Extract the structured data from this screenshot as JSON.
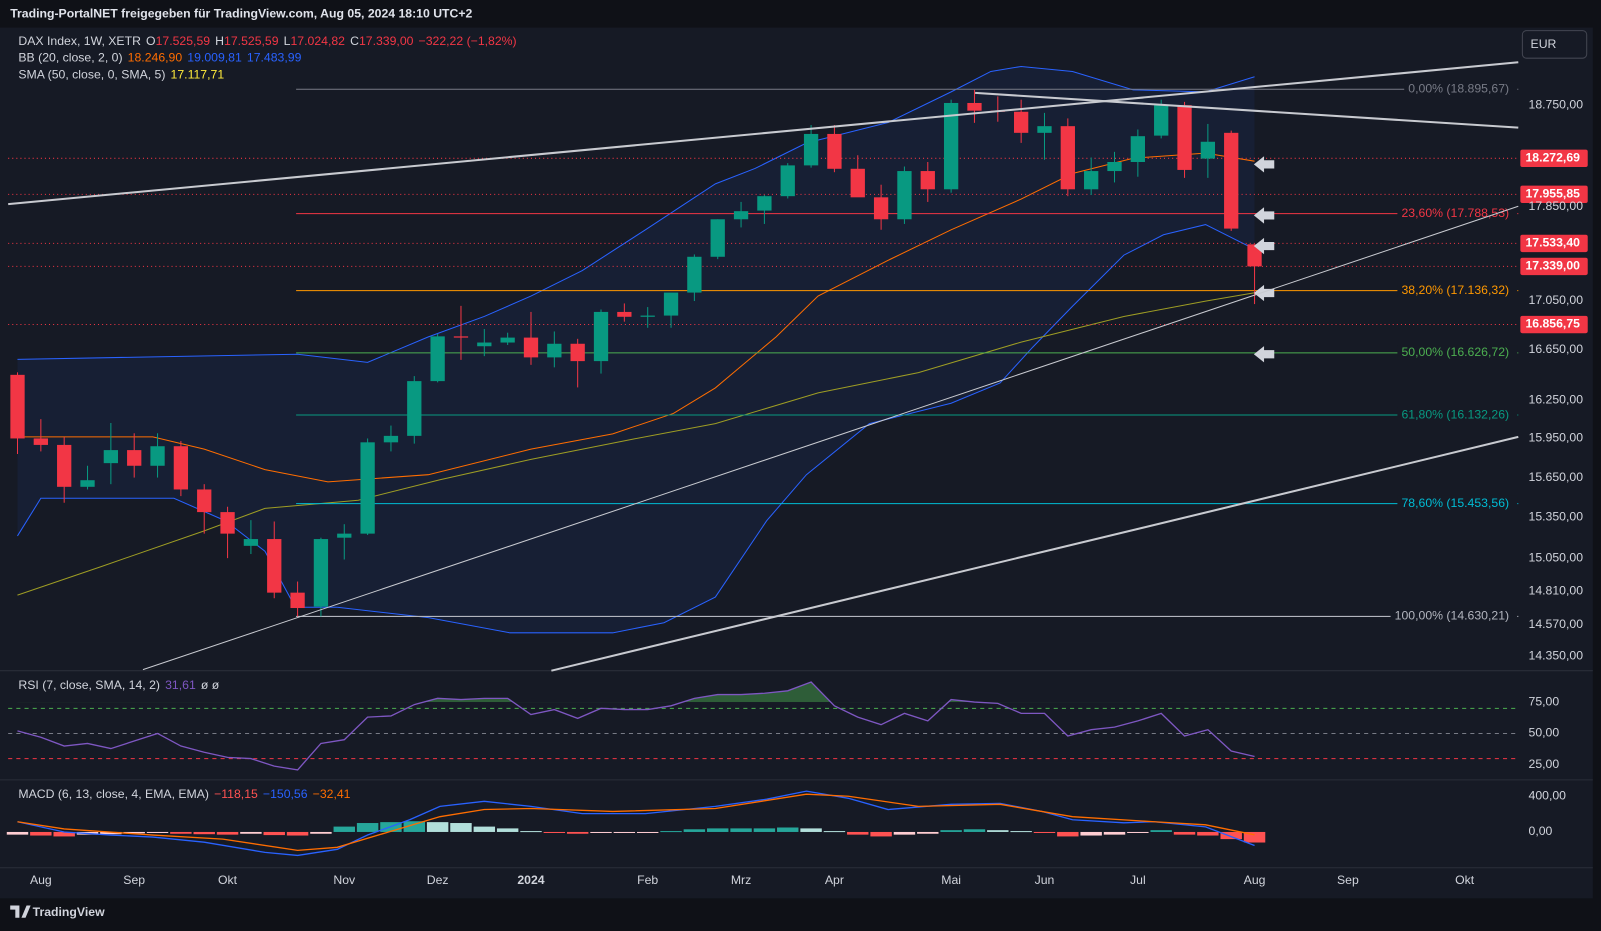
{
  "header": {
    "title": "Trading-PortalNET freigegeben für TradingView.com, Aug 05, 2024 18:10 UTC+2"
  },
  "currency": "EUR",
  "footer": {
    "brand": "TradingView"
  },
  "chart_data": [
    {
      "type": "candlestick",
      "legend": [
        {
          "title": "DAX Index, 1W, XETR",
          "items": [
            {
              "key": "O",
              "value": "17.525,59",
              "color": "#f23645"
            },
            {
              "key": "H",
              "value": "17.525,59",
              "color": "#f23645"
            },
            {
              "key": "L",
              "value": "17.024,82",
              "color": "#f23645"
            },
            {
              "key": "C",
              "value": "17.339,00",
              "color": "#f23645"
            },
            {
              "value": "−322,22 (−1,82%)",
              "color": "#f23645"
            }
          ]
        },
        {
          "title": "BB (20, close, 2, 0)",
          "items": [
            {
              "value": "18.246,90",
              "color": "#ff6d00"
            },
            {
              "value": "19.009,81",
              "color": "#2962ff"
            },
            {
              "value": "17.483,99",
              "color": "#2962ff"
            }
          ]
        },
        {
          "title": "SMA (50, close, 0, SMA, 5)",
          "items": [
            {
              "value": "17.117,71",
              "color": "#ffeb3b"
            }
          ]
        }
      ],
      "xlim": [
        -0.4,
        64.3
      ],
      "xticks": [
        {
          "value": 1,
          "label": "Aug"
        },
        {
          "value": 5,
          "label": "Sep"
        },
        {
          "value": 9,
          "label": "Okt"
        },
        {
          "value": 14,
          "label": "Nov"
        },
        {
          "value": 18,
          "label": "Dez"
        },
        {
          "value": 22,
          "label": "2024"
        },
        {
          "value": 27,
          "label": "Feb"
        },
        {
          "value": 31,
          "label": "Mrz"
        },
        {
          "value": 35,
          "label": "Apr"
        },
        {
          "value": 40,
          "label": "Mai"
        },
        {
          "value": 44,
          "label": "Jun"
        },
        {
          "value": 48,
          "label": "Jul"
        },
        {
          "value": 53,
          "label": "Aug"
        },
        {
          "value": 57,
          "label": "Sep"
        },
        {
          "value": 62,
          "label": "Okt"
        }
      ],
      "ylim": [
        14250,
        19460
      ],
      "log_scale": true,
      "yticks": [
        {
          "value": 18750,
          "label": "18.750,00"
        },
        {
          "value": 17850,
          "label": "17.850,00"
        },
        {
          "value": 17050,
          "label": "17.050,00"
        },
        {
          "value": 16650,
          "label": "16.650,00"
        },
        {
          "value": 16250,
          "label": "16.250,00"
        },
        {
          "value": 15950,
          "label": "15.950,00"
        },
        {
          "value": 15650,
          "label": "15.650,00"
        },
        {
          "value": 15350,
          "label": "15.350,00"
        },
        {
          "value": 15050,
          "label": "15.050,00"
        },
        {
          "value": 14810,
          "label": "14.810,00"
        },
        {
          "value": 14570,
          "label": "14.570,00"
        },
        {
          "value": 14350,
          "label": "14.350,00"
        }
      ],
      "up_color": "#089981",
      "down_color": "#f23645",
      "open": [
        16450,
        15950,
        15900,
        15580,
        15760,
        15860,
        15740,
        15890,
        15560,
        15390,
        15140,
        15190,
        14800,
        14700,
        15200,
        15230,
        15920,
        15970,
        16400,
        16760,
        16680,
        16710,
        16750,
        16590,
        16700,
        16560,
        16960,
        16920,
        16930,
        17120,
        17420,
        17740,
        17815,
        17940,
        18210,
        18490,
        18180,
        17930,
        17740,
        18160,
        18000,
        18770,
        18700,
        18690,
        18500,
        18560,
        18000,
        18160,
        18240,
        18475,
        18750,
        18270,
        18500,
        17525.59
      ],
      "high": [
        16470,
        16100,
        15960,
        15740,
        16070,
        15990,
        15990,
        15930,
        15600,
        15430,
        15330,
        15320,
        14880,
        15200,
        15300,
        15950,
        16050,
        16440,
        16780,
        17010,
        16820,
        16790,
        16960,
        16800,
        16740,
        16980,
        17030,
        17000,
        17110,
        17440,
        17740,
        17890,
        17950,
        18230,
        18570,
        18570,
        18300,
        18040,
        18200,
        18240,
        18800,
        18890,
        18830,
        18800,
        18680,
        18630,
        18280,
        18330,
        18530,
        18800,
        18780,
        18580,
        18520,
        17525.59
      ],
      "low": [
        15830,
        15850,
        15460,
        15560,
        15600,
        15650,
        15650,
        15510,
        15230,
        15050,
        15080,
        14760,
        14630,
        14630,
        15040,
        15220,
        15850,
        15910,
        16390,
        16570,
        16600,
        16690,
        16530,
        16510,
        16350,
        16460,
        16880,
        16830,
        16830,
        17050,
        17400,
        17670,
        17700,
        17920,
        18190,
        18150,
        17940,
        17650,
        17700,
        17890,
        17970,
        18590,
        18600,
        18410,
        18260,
        17940,
        17950,
        18060,
        18110,
        18450,
        18100,
        18100,
        17640,
        17024.82
      ],
      "close": [
        15950,
        15900,
        15580,
        15630,
        15860,
        15740,
        15890,
        15560,
        15390,
        15230,
        15190,
        14800,
        14690,
        15190,
        15230,
        15920,
        15970,
        16400,
        16760,
        16750,
        16710,
        16750,
        16590,
        16700,
        16560,
        16960,
        16920,
        16930,
        17120,
        17420,
        17740,
        17810,
        17940,
        18210,
        18490,
        18180,
        17930,
        17740,
        18160,
        18000,
        18770,
        18700,
        18690,
        18500,
        18560,
        18000,
        18160,
        18240,
        18470,
        18750,
        18170,
        18420,
        17660,
        17339
      ],
      "bollinger": {
        "fill_color": "rgba(41,98,255,0.07)",
        "upper": {
          "color": "#2962ff",
          "x": [
            0,
            12,
            15,
            17.6,
            20,
            22,
            24.2,
            26.9,
            29.9,
            31.6,
            33.8,
            37.3,
            40,
            41.7,
            43,
            45.2,
            47.8,
            50.9,
            53
          ],
          "values": [
            16574,
            16615,
            16550,
            16756,
            16923,
            17091,
            17304,
            17650,
            18048,
            18183,
            18409,
            18593,
            18871,
            19059,
            19106,
            19059,
            18890,
            18871,
            19010
          ]
        },
        "basis": {
          "color": "#ff6d00",
          "x": [
            0,
            5.8,
            8,
            10.6,
            13.3,
            17.6,
            22,
            25.5,
            28.1,
            29.9,
            32.5,
            34.3,
            37.3,
            40,
            43,
            45.2,
            47.8,
            50.9,
            53
          ],
          "values": [
            15962,
            15962,
            15867,
            15711,
            15618,
            15672,
            15867,
            15986,
            16145,
            16346,
            16756,
            17091,
            17390,
            17650,
            17915,
            18138,
            18273,
            18319,
            18247
          ]
        },
        "lower": {
          "color": "#2962ff",
          "x": [
            0,
            1,
            6.7,
            8.9,
            10.6,
            11.9,
            13.7,
            17.6,
            21.1,
            25.5,
            27.7,
            29.9,
            32.1,
            33.8,
            36.5,
            40,
            42.1,
            43.5,
            45.2,
            47.4,
            49.1,
            50.9,
            53
          ],
          "values": [
            15213,
            15494,
            15494,
            15326,
            15100,
            14695,
            14695,
            14622,
            14514,
            14514,
            14586,
            14768,
            15326,
            15672,
            16065,
            16225,
            16386,
            16673,
            17007,
            17434,
            17607,
            17694,
            17484
          ]
        }
      },
      "sma": {
        "color": "#9e9d24",
        "x": [
          0,
          3.6,
          8,
          10.6,
          14.6,
          18.1,
          22,
          26.4,
          29.9,
          34.3,
          38.6,
          43,
          47.4,
          50.9,
          53
        ],
        "values": [
          14782,
          14989,
          15251,
          15418,
          15479,
          15633,
          15789,
          15946,
          16065,
          16306,
          16468,
          16714,
          16923,
          17049,
          17118
        ]
      },
      "fib_levels": [
        {
          "value": 18895.67,
          "label": "0,00% (18.895,67)",
          "color": "#787b86"
        },
        {
          "value": 17788.53,
          "label": "23,60% (17.788,53)",
          "color": "#f23645"
        },
        {
          "value": 17136.32,
          "label": "38,20% (17.136,32)",
          "color": "#ff9800"
        },
        {
          "value": 16626.72,
          "label": "50,00% (16.626,72)",
          "color": "#4caf50"
        },
        {
          "value": 16132.26,
          "label": "61,80% (16.132,26)",
          "color": "#089981"
        },
        {
          "value": 15453.56,
          "label": "78,60% (15.453,56)",
          "color": "#00bcd4"
        },
        {
          "value": 14630.21,
          "label": "100,00% (14.630,21)",
          "color": "#b2b5be"
        }
      ],
      "price_line_color": "#f23645",
      "price_lines": [
        {
          "value": 18272.69,
          "label": "18.272,69"
        },
        {
          "value": 17955.85,
          "label": "17.955,85"
        },
        {
          "value": 17533.4,
          "label": "17.533,40"
        },
        {
          "value": 17339.0,
          "label": "17.339,00"
        },
        {
          "value": 16856.75,
          "label": "16.856,75"
        }
      ]
    },
    {
      "type": "rsi",
      "legend": [
        {
          "title": "RSI (7, close, SMA, 14, 2)",
          "items": [
            {
              "value": "31,61",
              "color": "#7e57c2"
            },
            {
              "value": "ø ø",
              "color": "#d1d4dc"
            }
          ]
        }
      ],
      "ylim": [
        13,
        100
      ],
      "yticks": [
        {
          "value": 75,
          "label": "75,00"
        },
        {
          "value": 50,
          "label": "50,00"
        },
        {
          "value": 25,
          "label": "25,00"
        }
      ],
      "color": "#7e57c2",
      "fill_color": "rgba(76,175,80,0.45)",
      "fill_above": 75,
      "levels": [
        {
          "value": 70,
          "color": "#4caf50"
        },
        {
          "value": 50,
          "color": "#787b86"
        },
        {
          "value": 30,
          "color": "#f23645"
        }
      ],
      "values": [
        52,
        47,
        40,
        42,
        38,
        44,
        50,
        40,
        35,
        31,
        30,
        24,
        21,
        42,
        45,
        63,
        64,
        73,
        78,
        77,
        78,
        78,
        65,
        69,
        62,
        70,
        69,
        69,
        72,
        78,
        81,
        81,
        82,
        84,
        91,
        72,
        63,
        57,
        66,
        60,
        77,
        75,
        74,
        66,
        66,
        48,
        53,
        55,
        60,
        66,
        48,
        53,
        36,
        31.61
      ]
    },
    {
      "type": "macd",
      "legend": [
        {
          "title": "MACD (6, 13, close, 4, EMA, EMA)",
          "items": [
            {
              "value": "−118,15",
              "color": "#ff5252"
            },
            {
              "value": "−150,56",
              "color": "#2962ff"
            },
            {
              "value": "−32,41",
              "color": "#ff6d00"
            }
          ]
        }
      ],
      "ylim": [
        -400,
        571
      ],
      "yticks": [
        {
          "value": 400,
          "label": "400,00"
        },
        {
          "value": 0,
          "label": "0,00"
        }
      ],
      "histogram_colors": [
        "#26a69a",
        "#b2dfdb",
        "#ff5252",
        "#ffcdd2"
      ],
      "histogram": [
        -30,
        -40,
        -50,
        -30,
        -25,
        -15,
        -10,
        -20,
        -25,
        -30,
        -20,
        -35,
        -40,
        -20,
        60,
        100,
        110,
        120,
        110,
        100,
        60,
        40,
        10,
        -10,
        -20,
        -10,
        -5,
        -5,
        10,
        30,
        40,
        40,
        40,
        50,
        40,
        10,
        -30,
        -50,
        -30,
        -20,
        20,
        30,
        20,
        10,
        -10,
        -50,
        -40,
        -30,
        -10,
        20,
        -30,
        -40,
        -80,
        -118.15
      ],
      "macd": {
        "color": "#2962ff",
        "x": [
          0,
          2,
          4,
          5.8,
          8,
          10.6,
          12,
          13.7,
          15,
          16.8,
          18.1,
          20,
          22,
          24.2,
          26.9,
          29.9,
          32.1,
          33.8,
          35.6,
          37.3,
          40,
          42.1,
          43.9,
          45.2,
          47.4,
          48.7,
          50.9,
          53
        ],
        "values": [
          114,
          0,
          -34,
          -57,
          -114,
          -229,
          -263,
          -194,
          -34,
          137,
          286,
          343,
          286,
          206,
          206,
          286,
          366,
          457,
          377,
          251,
          309,
          320,
          229,
          137,
          103,
          114,
          57,
          -150.56
        ]
      },
      "signal": {
        "color": "#ff6d00",
        "x": [
          0,
          2,
          5.8,
          8.8,
          12,
          13.7,
          15.9,
          18.1,
          20,
          22,
          25.5,
          29.9,
          33.8,
          35.6,
          38.6,
          42.1,
          45.2,
          48.7,
          50.9,
          53
        ],
        "values": [
          114,
          34,
          -34,
          -80,
          -206,
          -171,
          0,
          171,
          251,
          263,
          229,
          263,
          423,
          400,
          286,
          309,
          171,
          114,
          80,
          -32.41
        ]
      }
    }
  ]
}
